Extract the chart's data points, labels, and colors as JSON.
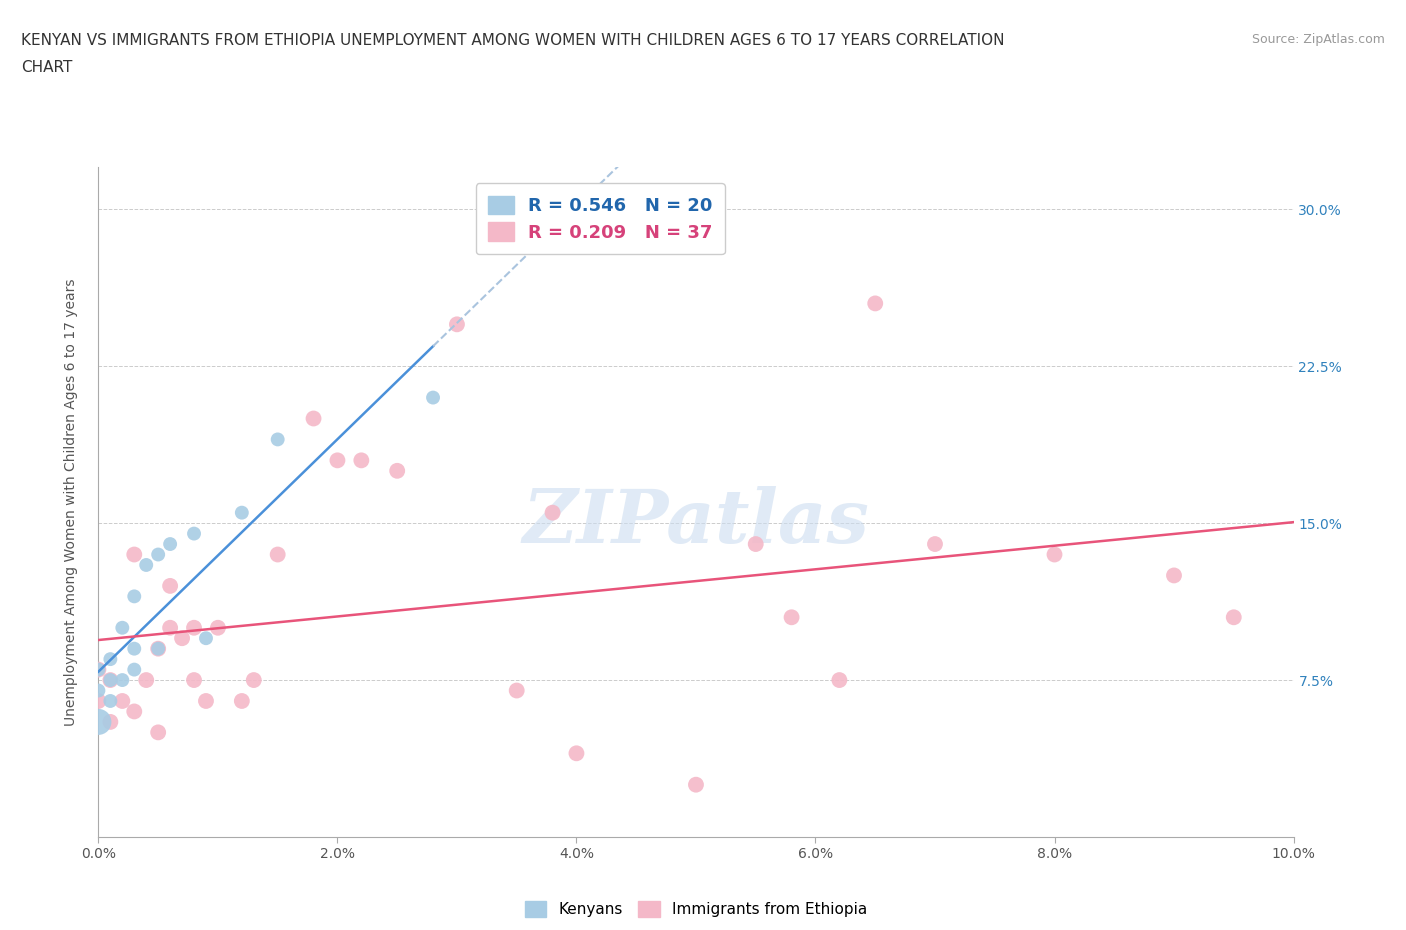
{
  "title_line1": "KENYAN VS IMMIGRANTS FROM ETHIOPIA UNEMPLOYMENT AMONG WOMEN WITH CHILDREN AGES 6 TO 17 YEARS CORRELATION",
  "title_line2": "CHART",
  "source": "Source: ZipAtlas.com",
  "ylabel": "Unemployment Among Women with Children Ages 6 to 17 years",
  "xlim": [
    0.0,
    0.1
  ],
  "ylim": [
    0.0,
    0.32
  ],
  "xtick_labels": [
    "0.0%",
    "2.0%",
    "4.0%",
    "6.0%",
    "8.0%",
    "10.0%"
  ],
  "xtick_vals": [
    0.0,
    0.02,
    0.04,
    0.06,
    0.08,
    0.1
  ],
  "ytick_labels": [
    "7.5%",
    "15.0%",
    "22.5%",
    "30.0%"
  ],
  "ytick_vals": [
    0.075,
    0.15,
    0.225,
    0.3
  ],
  "kenyan_R": 0.546,
  "kenyan_N": 20,
  "ethiopia_R": 0.209,
  "ethiopia_N": 37,
  "kenyan_color": "#a8cce4",
  "ethiopia_color": "#f4b8c8",
  "kenyan_line_color": "#4a90d9",
  "kenya_extrap_color": "#aac4de",
  "ethiopia_line_color": "#e8547a",
  "legend_text_color_blue": "#2166ac",
  "legend_text_color_pink": "#d6427a",
  "kenyan_points_x": [
    0.0,
    0.0,
    0.0,
    0.001,
    0.001,
    0.001,
    0.002,
    0.002,
    0.003,
    0.003,
    0.003,
    0.004,
    0.005,
    0.005,
    0.006,
    0.008,
    0.009,
    0.012,
    0.015,
    0.028
  ],
  "kenyan_points_y": [
    0.055,
    0.07,
    0.08,
    0.065,
    0.075,
    0.085,
    0.075,
    0.1,
    0.08,
    0.09,
    0.115,
    0.13,
    0.09,
    0.135,
    0.14,
    0.145,
    0.095,
    0.155,
    0.19,
    0.21
  ],
  "kenyan_sizes": [
    350,
    100,
    100,
    100,
    100,
    100,
    100,
    100,
    100,
    100,
    100,
    100,
    100,
    100,
    100,
    100,
    100,
    100,
    100,
    100
  ],
  "ethiopia_points_x": [
    0.0,
    0.0,
    0.001,
    0.001,
    0.002,
    0.003,
    0.003,
    0.004,
    0.005,
    0.005,
    0.006,
    0.006,
    0.007,
    0.008,
    0.008,
    0.009,
    0.01,
    0.012,
    0.013,
    0.015,
    0.018,
    0.02,
    0.022,
    0.025,
    0.03,
    0.035,
    0.038,
    0.04,
    0.05,
    0.055,
    0.058,
    0.062,
    0.065,
    0.07,
    0.08,
    0.09,
    0.095
  ],
  "ethiopia_points_y": [
    0.065,
    0.08,
    0.055,
    0.075,
    0.065,
    0.06,
    0.135,
    0.075,
    0.05,
    0.09,
    0.1,
    0.12,
    0.095,
    0.075,
    0.1,
    0.065,
    0.1,
    0.065,
    0.075,
    0.135,
    0.2,
    0.18,
    0.18,
    0.175,
    0.245,
    0.07,
    0.155,
    0.04,
    0.025,
    0.14,
    0.105,
    0.075,
    0.255,
    0.14,
    0.135,
    0.125,
    0.105
  ],
  "background_color": "#ffffff",
  "watermark": "ZIPatlas",
  "watermark_color": "#ccddf0"
}
